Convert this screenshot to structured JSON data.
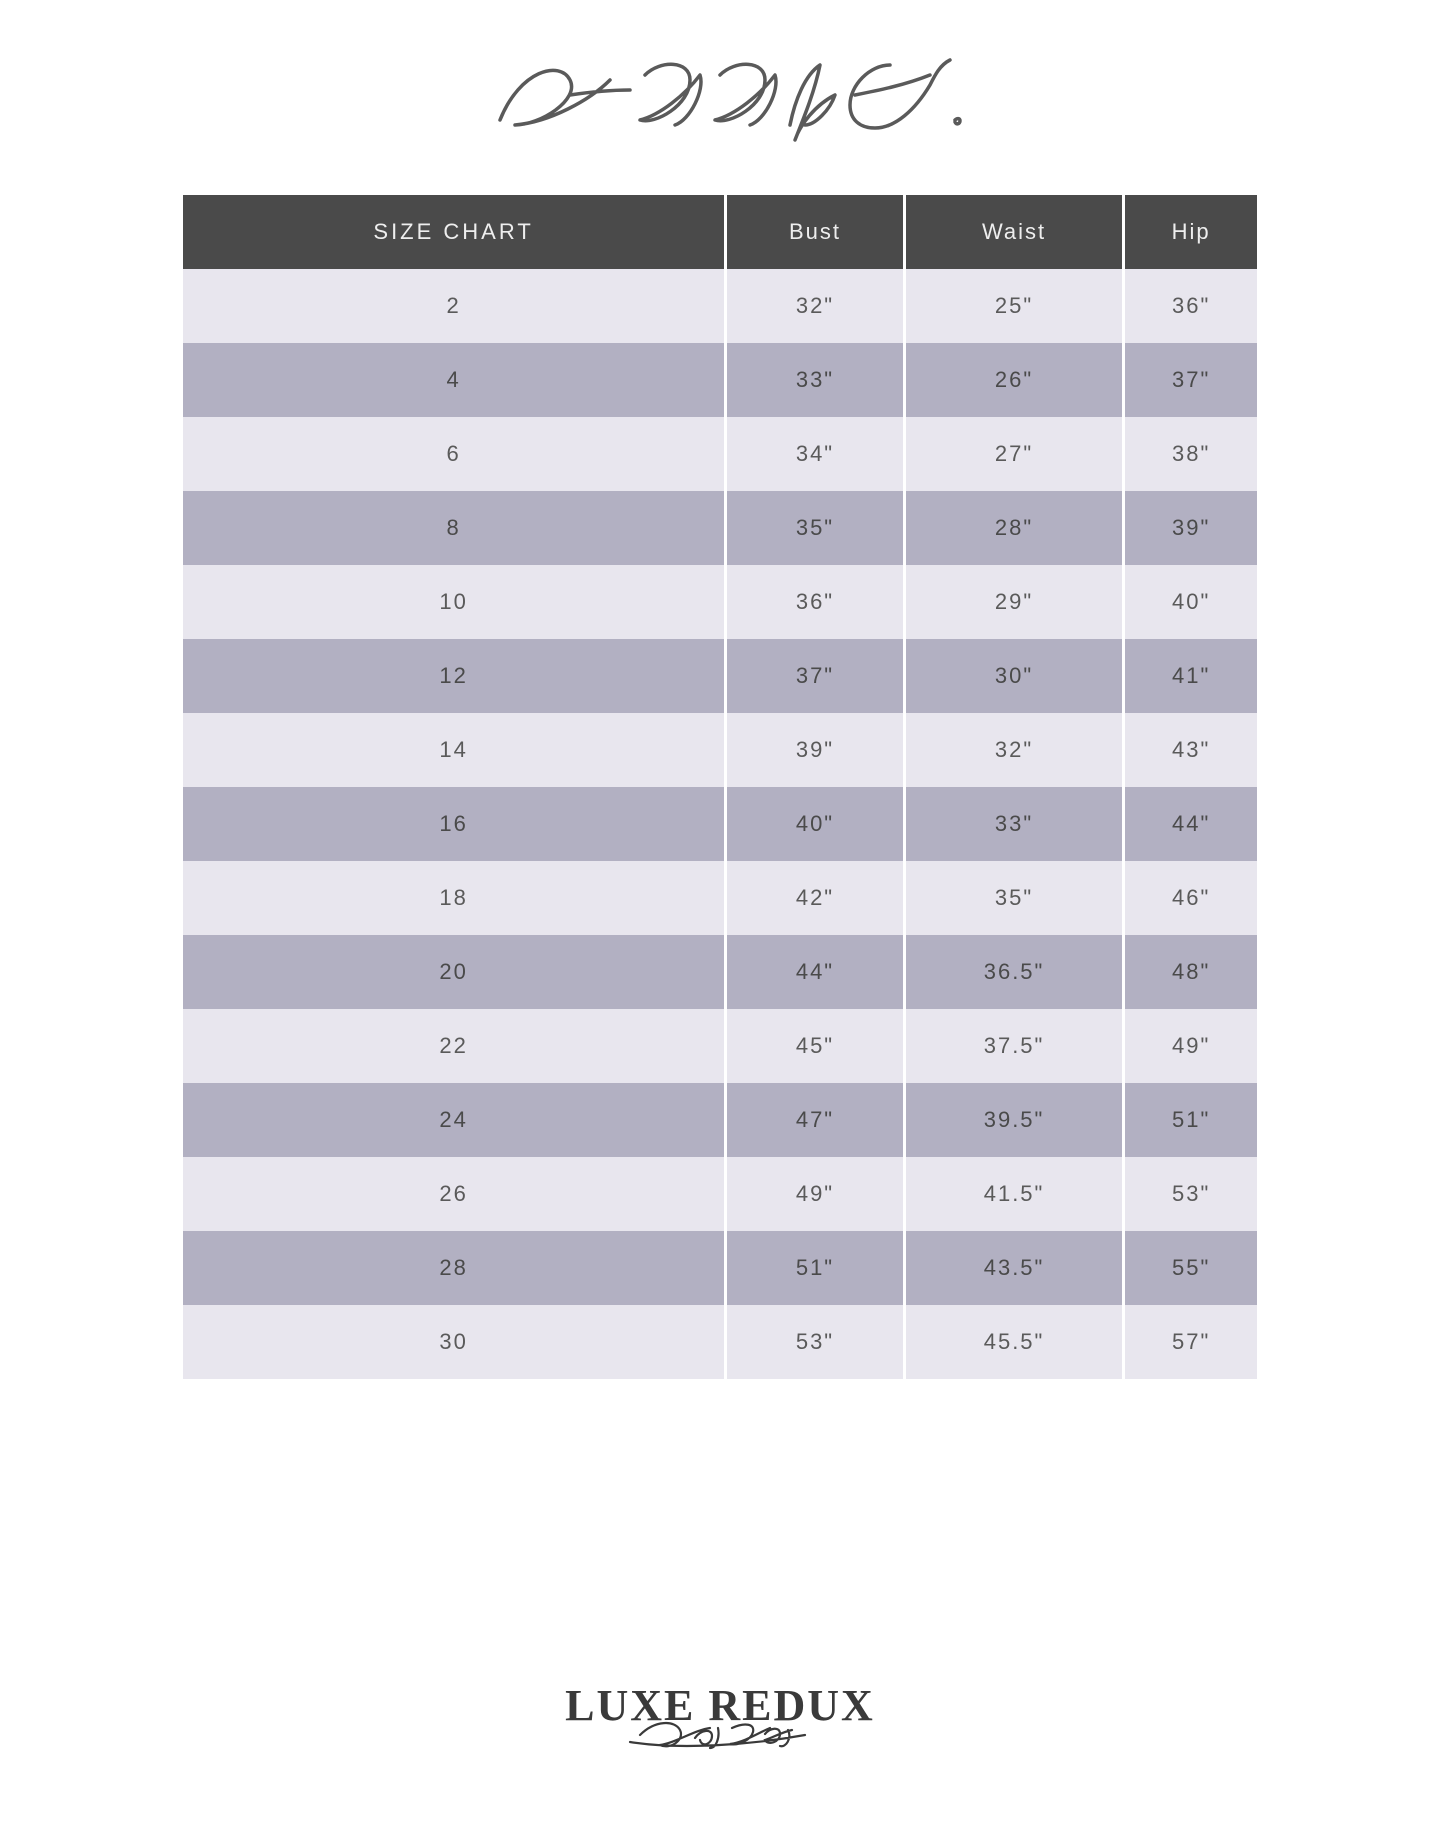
{
  "brand_title": "Eddy K.",
  "footer": {
    "main": "LUXE REDUX",
    "sub": "Bridal"
  },
  "table": {
    "type": "table",
    "header_bg": "#4a4a4a",
    "header_text_color": "#eeeeee",
    "row_light_bg": "#e8e6ee",
    "row_dark_bg": "#b2b0c2",
    "cell_text_color": "#5a5a5a",
    "font_size": 22,
    "columns": [
      "SIZE CHART",
      "Bust",
      "Waist",
      "Hip"
    ],
    "rows": [
      {
        "size": "2",
        "bust": "32\"",
        "waist": "25\"",
        "hip": "36\""
      },
      {
        "size": "4",
        "bust": "33\"",
        "waist": "26\"",
        "hip": "37\""
      },
      {
        "size": "6",
        "bust": "34\"",
        "waist": "27\"",
        "hip": "38\""
      },
      {
        "size": "8",
        "bust": "35\"",
        "waist": "28\"",
        "hip": "39\""
      },
      {
        "size": "10",
        "bust": "36\"",
        "waist": "29\"",
        "hip": "40\""
      },
      {
        "size": "12",
        "bust": "37\"",
        "waist": "30\"",
        "hip": "41\""
      },
      {
        "size": "14",
        "bust": "39\"",
        "waist": "32\"",
        "hip": "43\""
      },
      {
        "size": "16",
        "bust": "40\"",
        "waist": "33\"",
        "hip": "44\""
      },
      {
        "size": "18",
        "bust": "42\"",
        "waist": "35\"",
        "hip": "46\""
      },
      {
        "size": "20",
        "bust": "44\"",
        "waist": "36.5\"",
        "hip": "48\""
      },
      {
        "size": "22",
        "bust": "45\"",
        "waist": "37.5\"",
        "hip": "49\""
      },
      {
        "size": "24",
        "bust": "47\"",
        "waist": "39.5\"",
        "hip": "51\""
      },
      {
        "size": "26",
        "bust": "49\"",
        "waist": "41.5\"",
        "hip": "53\""
      },
      {
        "size": "28",
        "bust": "51\"",
        "waist": "43.5\"",
        "hip": "55\""
      },
      {
        "size": "30",
        "bust": "53\"",
        "waist": "45.5\"",
        "hip": "57\""
      }
    ]
  }
}
